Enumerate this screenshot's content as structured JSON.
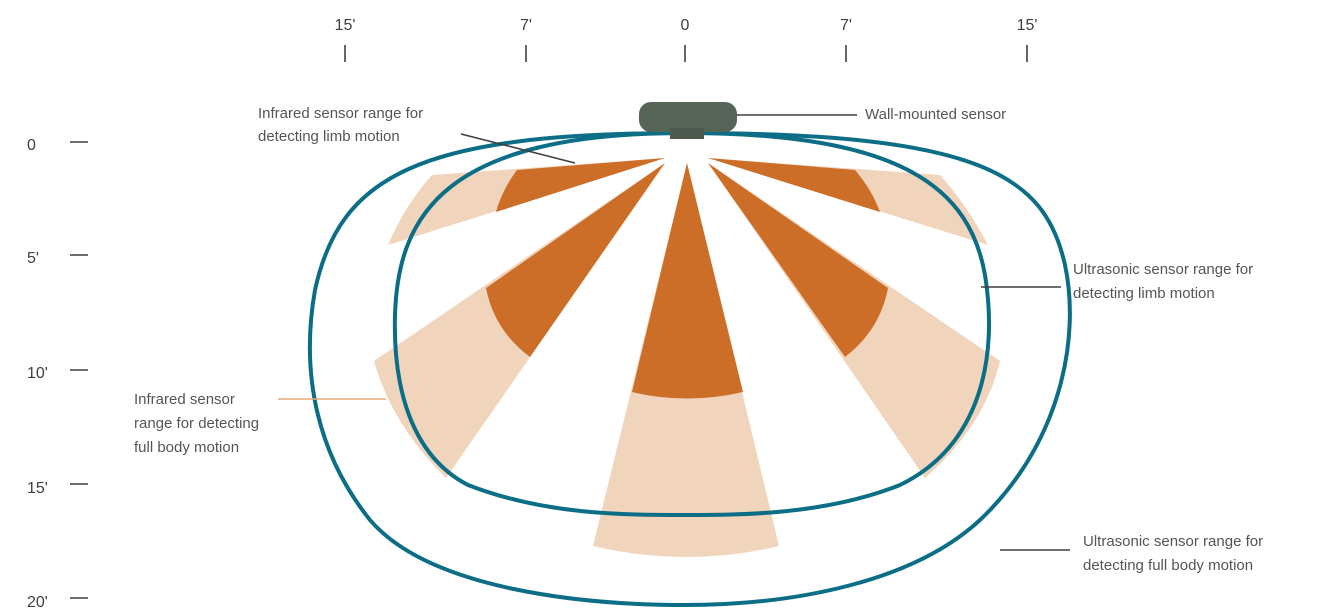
{
  "axes": {
    "top_ticks": [
      "15'",
      "7'",
      "0",
      "7'",
      "15'"
    ],
    "left_ticks": [
      "0",
      "5'",
      "10'",
      "15'",
      "20'"
    ]
  },
  "labels": {
    "wall_sensor": "Wall-mounted sensor",
    "ir_limb": [
      "Infrared sensor range for",
      "detecting limb motion"
    ],
    "ir_full": [
      "Infrared sensor",
      "range for detecting",
      "full body motion"
    ],
    "us_limb": [
      "Ultrasonic sensor range for",
      "detecting limb motion"
    ],
    "us_full": [
      "Ultrasonic sensor range for",
      "detecting full body motion"
    ]
  },
  "colors": {
    "ir_limb_fill": "#cc6e28",
    "ir_full_fill": "#f0d4bc",
    "ultrasonic_stroke": "#0c6e86",
    "sensor_body": "#566457",
    "callout_line": "#3f3f3f",
    "ir_full_callout_line": "#e6a877",
    "tick_color": "#3f3f3f"
  }
}
